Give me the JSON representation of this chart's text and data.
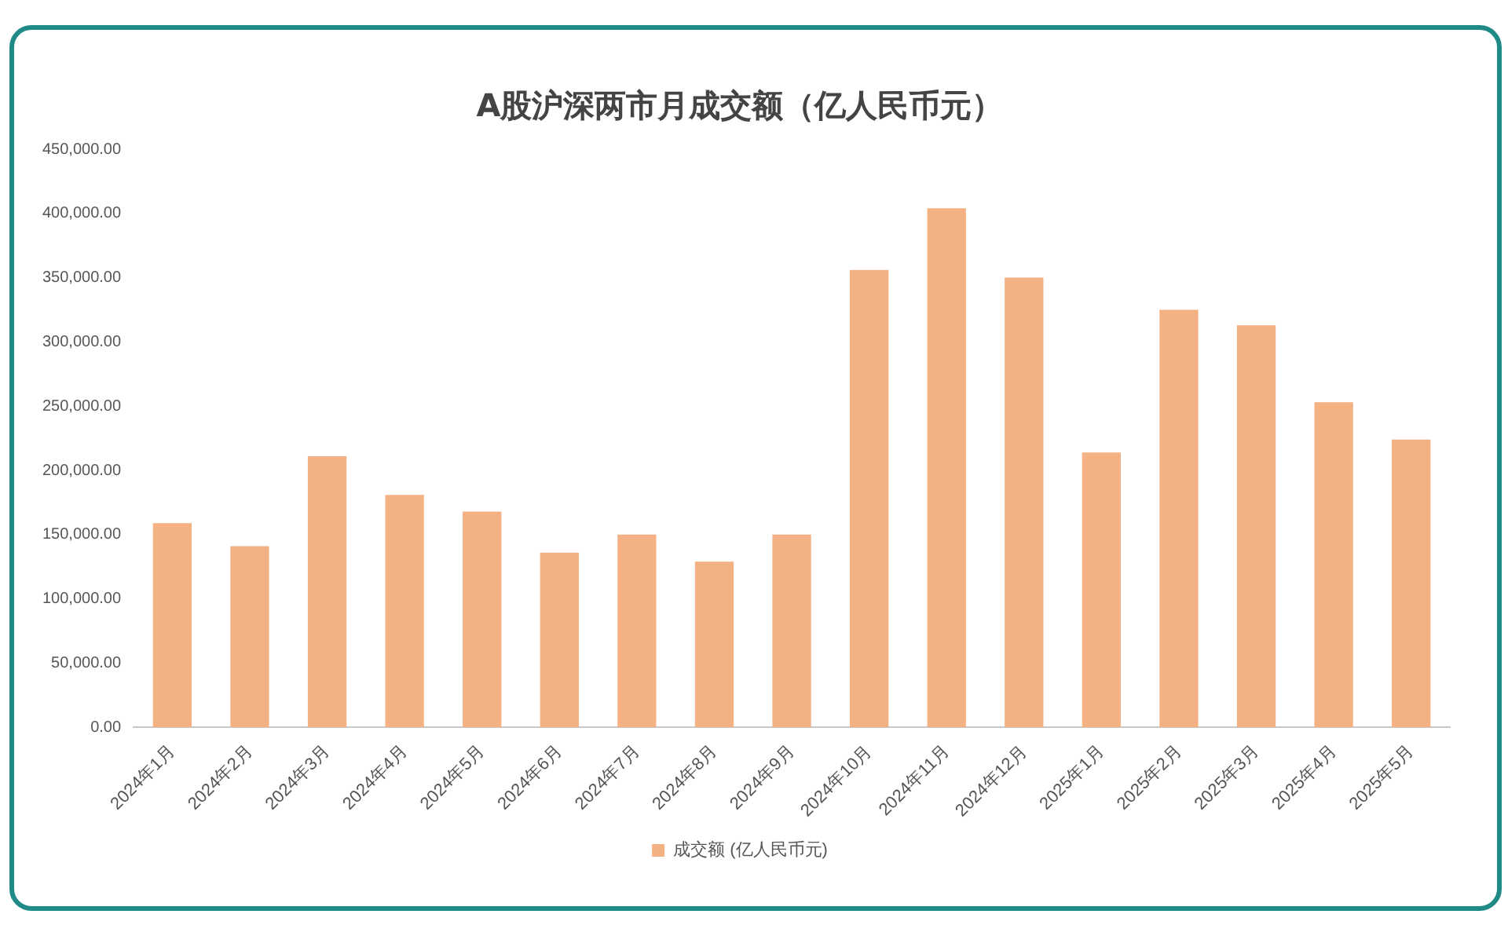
{
  "chart_data": {
    "type": "bar",
    "title": "A股沪深两市月成交额（亿人民币元）",
    "categories": [
      "2024年1月",
      "2024年2月",
      "2024年3月",
      "2024年4月",
      "2024年5月",
      "2024年6月",
      "2024年7月",
      "2024年8月",
      "2024年9月",
      "2024年10月",
      "2024年11月",
      "2024年12月",
      "2025年1月",
      "2025年2月",
      "2025年3月",
      "2025年4月",
      "2025年5月"
    ],
    "series": [
      {
        "name": "成交额 (亿人民币元)",
        "color": "#f4b183",
        "values": [
          159000,
          141000,
          211000,
          181000,
          168000,
          136000,
          150000,
          129000,
          150000,
          356000,
          404000,
          350000,
          214000,
          325000,
          313000,
          253000,
          224000
        ]
      }
    ],
    "ylim": [
      0,
      450000
    ],
    "yticks": [
      {
        "value": 0,
        "label": "0.00"
      },
      {
        "value": 50000,
        "label": "50,000.00"
      },
      {
        "value": 100000,
        "label": "100,000.00"
      },
      {
        "value": 150000,
        "label": "150,000.00"
      },
      {
        "value": 200000,
        "label": "200,000.00"
      },
      {
        "value": 250000,
        "label": "250,000.00"
      },
      {
        "value": 300000,
        "label": "300,000.00"
      },
      {
        "value": 350000,
        "label": "350,000.00"
      },
      {
        "value": 400000,
        "label": "400,000.00"
      },
      {
        "value": 450000,
        "label": "450,000.00"
      }
    ],
    "grid": false,
    "legend": "bottom"
  }
}
